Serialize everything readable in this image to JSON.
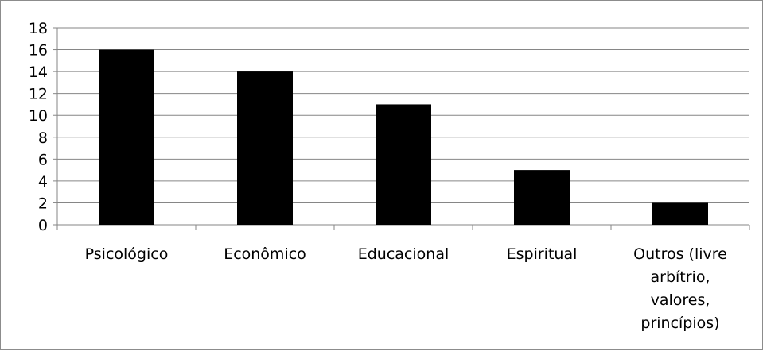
{
  "chart_data": {
    "type": "bar",
    "title": "",
    "xlabel": "",
    "ylabel": "",
    "categories": [
      "Psicológico",
      "Econômico",
      "Educacional",
      "Espiritual",
      "Outros (livre arbítrio, valores, princípios)"
    ],
    "category_lines": [
      [
        "Psicológico"
      ],
      [
        "Econômico"
      ],
      [
        "Educacional"
      ],
      [
        "Espiritual"
      ],
      [
        "Outros (livre",
        "arbítrio,",
        "valores,",
        "princípios)"
      ]
    ],
    "values": [
      16,
      14,
      11,
      5,
      2
    ],
    "ylim": [
      0,
      18
    ],
    "yticks": [
      0,
      2,
      4,
      6,
      8,
      10,
      12,
      14,
      16,
      18
    ],
    "grid": true,
    "legend": "none",
    "bar_color": "#000000",
    "grid_color": "#868686"
  }
}
